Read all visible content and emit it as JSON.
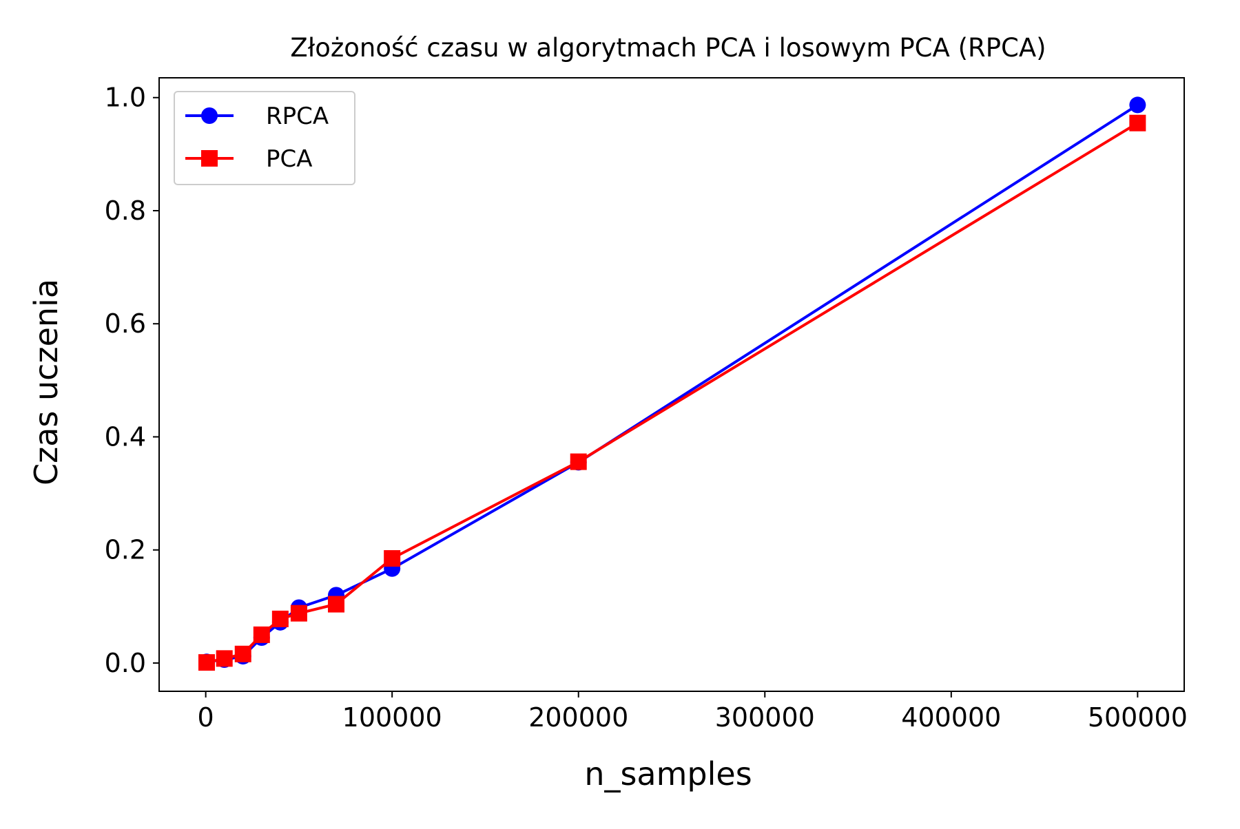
{
  "chart_data": {
    "type": "line",
    "title": "Złożoność czasu w algorytmach PCA i losowym PCA (RPCA)",
    "xlabel": "n_samples",
    "ylabel": "Czas uczenia",
    "xlim": [
      -25000,
      525000
    ],
    "ylim": [
      -0.05,
      1.035
    ],
    "xticks": [
      0,
      100000,
      200000,
      300000,
      400000,
      500000
    ],
    "xtick_labels": [
      "0",
      "100000",
      "200000",
      "300000",
      "400000",
      "500000"
    ],
    "yticks": [
      0.0,
      0.2,
      0.4,
      0.6,
      0.8,
      1.0
    ],
    "ytick_labels": [
      "0.0",
      "0.2",
      "0.4",
      "0.6",
      "0.8",
      "1.0"
    ],
    "grid": false,
    "legend_position": "upper-left",
    "series": [
      {
        "name": "RPCA",
        "color": "#0000ff",
        "marker": "circle",
        "x": [
          500,
          10000,
          20000,
          30000,
          40000,
          50000,
          70000,
          100000,
          200000,
          500000
        ],
        "y": [
          0.002,
          0.006,
          0.012,
          0.045,
          0.072,
          0.098,
          0.12,
          0.167,
          0.355,
          0.987
        ]
      },
      {
        "name": "PCA",
        "color": "#ff0000",
        "marker": "square",
        "x": [
          500,
          10000,
          20000,
          30000,
          40000,
          50000,
          70000,
          100000,
          200000,
          500000
        ],
        "y": [
          0.001,
          0.008,
          0.016,
          0.05,
          0.078,
          0.088,
          0.104,
          0.185,
          0.356,
          0.955
        ]
      }
    ]
  }
}
